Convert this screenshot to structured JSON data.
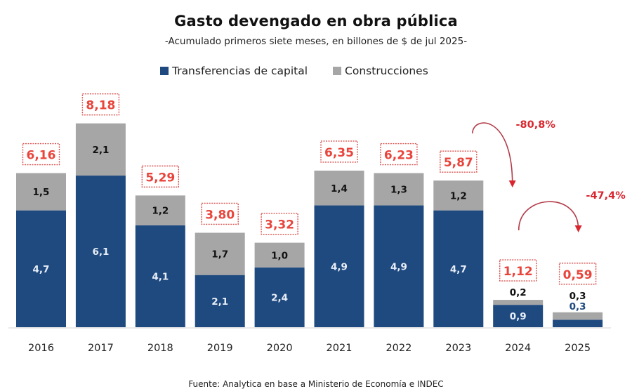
{
  "chart_data": {
    "type": "bar",
    "stacked": true,
    "title": "Gasto devengado en obra pública",
    "subtitle": "-Acumulado primeros siete meses, en billones de $ de jul 2025-",
    "xlabel": "",
    "ylabel": "",
    "ylim": [
      0,
      9
    ],
    "grid": false,
    "legend_position": "top",
    "categories": [
      "2016",
      "2017",
      "2018",
      "2019",
      "2020",
      "2021",
      "2022",
      "2023",
      "2024",
      "2025"
    ],
    "series": [
      {
        "name": "Transferencias de capital",
        "color": "#1f4a80",
        "values": [
          4.7,
          6.1,
          4.1,
          2.1,
          2.4,
          4.9,
          4.9,
          4.7,
          0.9,
          0.3
        ],
        "labels": [
          "4,7",
          "6,1",
          "4,1",
          "2,1",
          "2,4",
          "4,9",
          "4,9",
          "4,7",
          "0,9",
          "0,3"
        ]
      },
      {
        "name": "Construcciones",
        "color": "#a6a6a6",
        "values": [
          1.5,
          2.1,
          1.2,
          1.7,
          1.0,
          1.4,
          1.3,
          1.2,
          0.2,
          0.3
        ],
        "labels": [
          "1,5",
          "2,1",
          "1,2",
          "1,7",
          "1,0",
          "1,4",
          "1,3",
          "1,2",
          "0,2",
          "0,3"
        ]
      }
    ],
    "totals": [
      6.16,
      8.18,
      5.29,
      3.8,
      3.32,
      6.35,
      6.23,
      5.87,
      1.12,
      0.59
    ],
    "total_labels": [
      "6,16",
      "8,18",
      "5,29",
      "3,80",
      "3,32",
      "6,35",
      "6,23",
      "5,87",
      "1,12",
      "0,59"
    ],
    "annotations": [
      {
        "from": "2023",
        "to": "2024",
        "text": "-80,8%"
      },
      {
        "from": "2024",
        "to": "2025",
        "text": "-47,4%"
      }
    ],
    "source": "Fuente: Analytica en base a Ministerio de Economía e INDEC"
  },
  "colors": {
    "accent_red": "#e8453c",
    "arrow": "#b23a48",
    "total_box_border": "#d9534f"
  }
}
